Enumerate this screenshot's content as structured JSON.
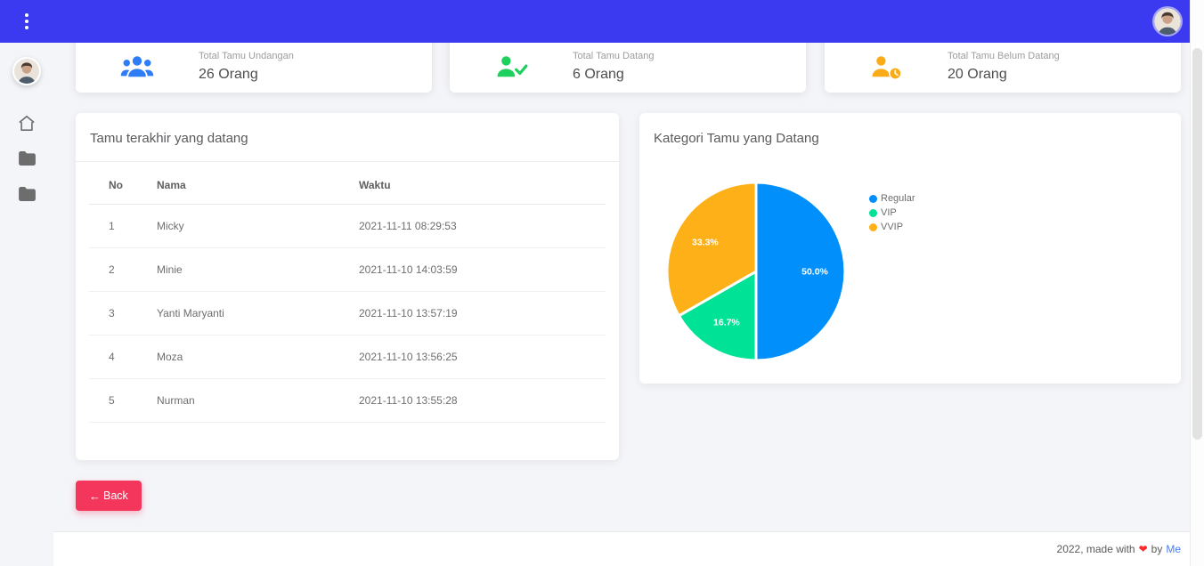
{
  "colors": {
    "navbar": "#3b3af0",
    "danger": "#f5365c",
    "link": "#4a7cf6",
    "heart": "#fb2c2c",
    "pie_blue": "#008FFB",
    "pie_green": "#00E396",
    "pie_yellow": "#FEB019"
  },
  "icons": [
    "kebab-menu-icon",
    "home-icon",
    "folder-icon",
    "folder-icon",
    "arrow-left-icon",
    "heart-icon"
  ],
  "stats": [
    {
      "icon": "users-group-icon",
      "icon_color": "#2e7cf6",
      "label": "Total Tamu Undangan",
      "value": "26 Orang"
    },
    {
      "icon": "user-check-icon",
      "icon_color": "#1fd05f",
      "label": "Total Tamu Datang",
      "value": "6 Orang"
    },
    {
      "icon": "user-clock-icon",
      "icon_color": "#fbab18",
      "label": "Total Tamu Belum Datang",
      "value": "20 Orang"
    }
  ],
  "table_panel": {
    "title": "Tamu terakhir yang datang",
    "columns": [
      "No",
      "Nama",
      "Waktu"
    ],
    "rows": [
      [
        "1",
        "Micky",
        "2021-11-11 08:29:53"
      ],
      [
        "2",
        "Minie",
        "2021-11-10 14:03:59"
      ],
      [
        "3",
        "Yanti Maryanti",
        "2021-11-10 13:57:19"
      ],
      [
        "4",
        "Moza",
        "2021-11-10 13:56:25"
      ],
      [
        "5",
        "Nurman",
        "2021-11-10 13:55:28"
      ]
    ]
  },
  "chart_panel": {
    "title": "Kategori Tamu yang Datang"
  },
  "chart_data": {
    "type": "pie",
    "title": "Kategori Tamu yang Datang",
    "labels": [
      "Regular",
      "VIP",
      "VVIP"
    ],
    "values": [
      50.0,
      16.7,
      33.3
    ],
    "unit": "%",
    "slice_labels": [
      "50.0%",
      "16.7%",
      "33.3%"
    ],
    "colors": [
      "#008FFB",
      "#00E396",
      "#FEB019"
    ],
    "legend_position": "right"
  },
  "back_button": {
    "arrow": "←",
    "label": "Back"
  },
  "footer": {
    "prefix": "2022, made with",
    "heart": "❤",
    "middle": "by",
    "link": "Me"
  }
}
